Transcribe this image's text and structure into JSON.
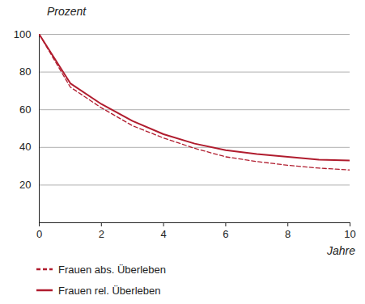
{
  "chart_data": {
    "type": "line",
    "x_label": "Jahre",
    "y_label": "Prozent",
    "x": [
      0,
      1,
      2,
      3,
      4,
      5,
      6,
      7,
      8,
      9,
      10
    ],
    "series": [
      {
        "name": "Frauen abs. Überleben",
        "color": "#b01c2e",
        "line_style": "dashed",
        "values": [
          100,
          72,
          61,
          51.5,
          45,
          39.5,
          35,
          32.5,
          30.5,
          29,
          28
        ]
      },
      {
        "name": "Frauen rel. Überleben",
        "color": "#b01c2e",
        "line_style": "solid",
        "values": [
          100,
          74,
          63,
          54,
          47,
          42,
          38.5,
          36.5,
          35,
          33.5,
          33
        ]
      }
    ],
    "xlim": [
      0,
      10
    ],
    "xticks": [
      0,
      2,
      4,
      6,
      8,
      10
    ],
    "ylim": [
      0,
      100
    ],
    "yticks": [
      20,
      40,
      60,
      80,
      100
    ],
    "grid": true,
    "legend": "bottom-left"
  }
}
